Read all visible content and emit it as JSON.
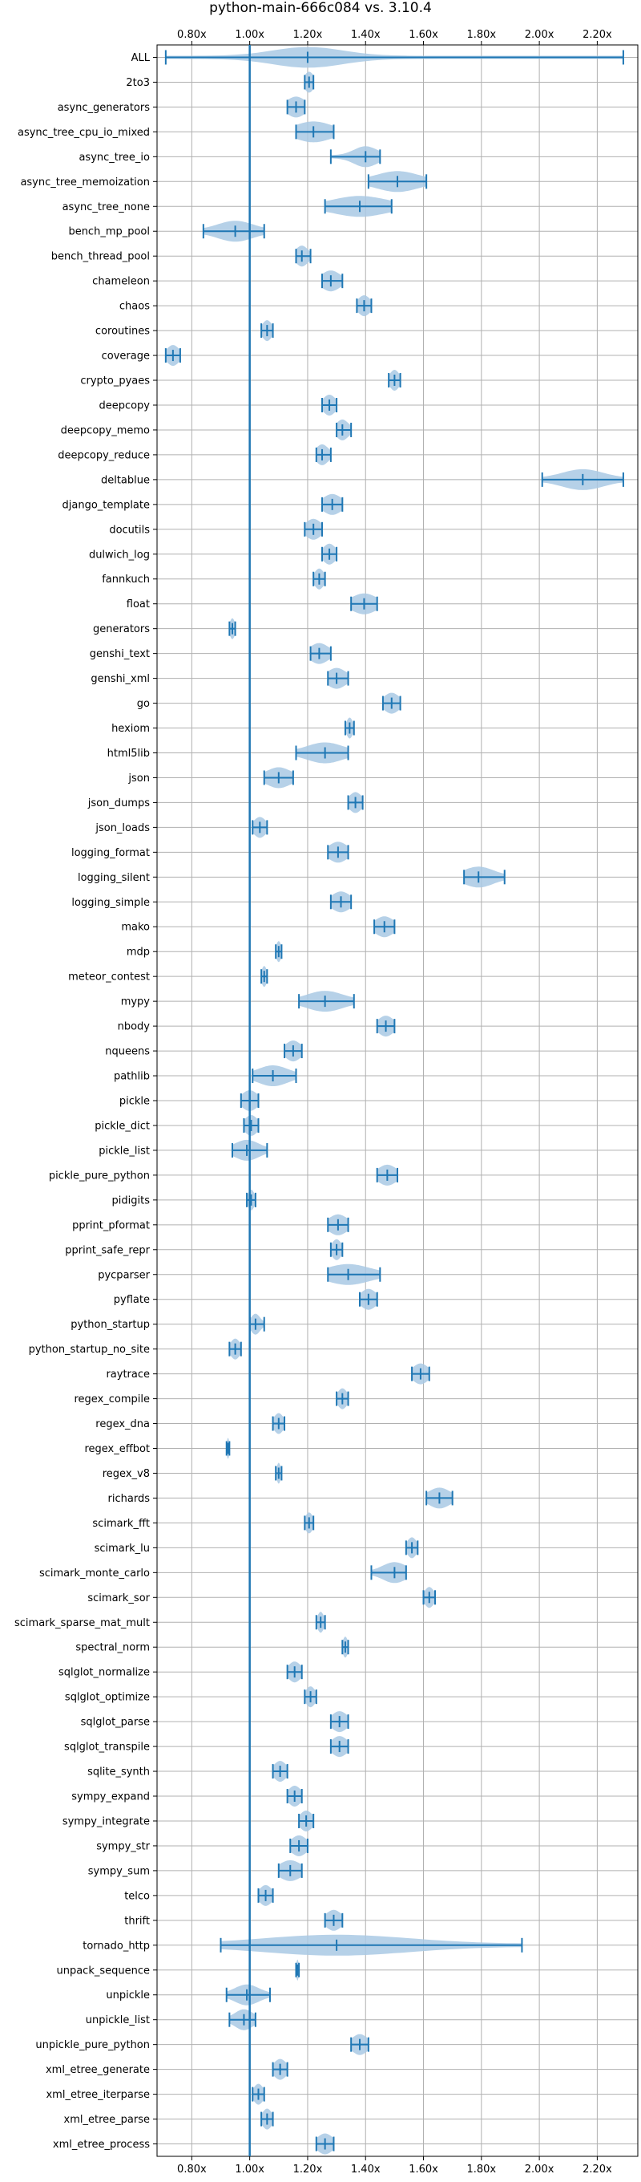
{
  "chart_data": {
    "type": "violin",
    "title": "python-main-666c084 vs. 3.10.4",
    "orientation": "horizontal",
    "xlim": [
      0.68,
      2.34
    ],
    "xticks": [
      0.8,
      1.0,
      1.2,
      1.4,
      1.6,
      1.8,
      2.0,
      2.2
    ],
    "xtick_labels": [
      "0.80x",
      "1.00x",
      "1.20x",
      "1.40x",
      "1.60x",
      "1.80x",
      "2.00x",
      "2.20x"
    ],
    "reference_line": 1.0,
    "grid": true,
    "colors": {
      "violin": "#a9c9e4",
      "line": "#1f77b4",
      "grid": "#b0b0b0"
    },
    "benchmarks": [
      {
        "name": "ALL",
        "min": 0.71,
        "max": 2.29,
        "median": 1.2,
        "spread": 0.12
      },
      {
        "name": "2to3",
        "min": 1.19,
        "max": 1.22,
        "median": 1.205,
        "spread": 0.015
      },
      {
        "name": "async_generators",
        "min": 1.13,
        "max": 1.19,
        "median": 1.16,
        "spread": 0.03
      },
      {
        "name": "async_tree_cpu_io_mixed",
        "min": 1.16,
        "max": 1.29,
        "median": 1.22,
        "spread": 0.06
      },
      {
        "name": "async_tree_io",
        "min": 1.28,
        "max": 1.45,
        "median": 1.4,
        "spread": 0.04
      },
      {
        "name": "async_tree_memoization",
        "min": 1.41,
        "max": 1.61,
        "median": 1.51,
        "spread": 0.07
      },
      {
        "name": "async_tree_none",
        "min": 1.26,
        "max": 1.49,
        "median": 1.38,
        "spread": 0.09
      },
      {
        "name": "bench_mp_pool",
        "min": 0.84,
        "max": 1.05,
        "median": 0.95,
        "spread": 0.06
      },
      {
        "name": "bench_thread_pool",
        "min": 1.16,
        "max": 1.21,
        "median": 1.18,
        "spread": 0.02
      },
      {
        "name": "chameleon",
        "min": 1.25,
        "max": 1.32,
        "median": 1.28,
        "spread": 0.03
      },
      {
        "name": "chaos",
        "min": 1.37,
        "max": 1.42,
        "median": 1.395,
        "spread": 0.02
      },
      {
        "name": "coroutines",
        "min": 1.04,
        "max": 1.08,
        "median": 1.06,
        "spread": 0.015
      },
      {
        "name": "coverage",
        "min": 0.71,
        "max": 0.76,
        "median": 0.735,
        "spread": 0.02
      },
      {
        "name": "crypto_pyaes",
        "min": 1.48,
        "max": 1.52,
        "median": 1.5,
        "spread": 0.015
      },
      {
        "name": "deepcopy",
        "min": 1.25,
        "max": 1.3,
        "median": 1.275,
        "spread": 0.02
      },
      {
        "name": "deepcopy_memo",
        "min": 1.3,
        "max": 1.35,
        "median": 1.32,
        "spread": 0.02
      },
      {
        "name": "deepcopy_reduce",
        "min": 1.23,
        "max": 1.28,
        "median": 1.25,
        "spread": 0.02
      },
      {
        "name": "deltablue",
        "min": 2.01,
        "max": 2.29,
        "median": 2.15,
        "spread": 0.07
      },
      {
        "name": "django_template",
        "min": 1.25,
        "max": 1.32,
        "median": 1.285,
        "spread": 0.03
      },
      {
        "name": "docutils",
        "min": 1.19,
        "max": 1.25,
        "median": 1.22,
        "spread": 0.025
      },
      {
        "name": "dulwich_log",
        "min": 1.25,
        "max": 1.3,
        "median": 1.275,
        "spread": 0.02
      },
      {
        "name": "fannkuch",
        "min": 1.22,
        "max": 1.26,
        "median": 1.24,
        "spread": 0.015
      },
      {
        "name": "float",
        "min": 1.35,
        "max": 1.44,
        "median": 1.395,
        "spread": 0.04
      },
      {
        "name": "generators",
        "min": 0.93,
        "max": 0.95,
        "median": 0.94,
        "spread": 0.008
      },
      {
        "name": "genshi_text",
        "min": 1.21,
        "max": 1.28,
        "median": 1.24,
        "spread": 0.03
      },
      {
        "name": "genshi_xml",
        "min": 1.27,
        "max": 1.34,
        "median": 1.3,
        "spread": 0.03
      },
      {
        "name": "go",
        "min": 1.46,
        "max": 1.52,
        "median": 1.49,
        "spread": 0.025
      },
      {
        "name": "hexiom",
        "min": 1.33,
        "max": 1.36,
        "median": 1.345,
        "spread": 0.01
      },
      {
        "name": "html5lib",
        "min": 1.16,
        "max": 1.34,
        "median": 1.26,
        "spread": 0.06
      },
      {
        "name": "json",
        "min": 1.05,
        "max": 1.15,
        "median": 1.1,
        "spread": 0.04
      },
      {
        "name": "json_dumps",
        "min": 1.34,
        "max": 1.39,
        "median": 1.365,
        "spread": 0.02
      },
      {
        "name": "json_loads",
        "min": 1.01,
        "max": 1.06,
        "median": 1.035,
        "spread": 0.02
      },
      {
        "name": "logging_format",
        "min": 1.27,
        "max": 1.34,
        "median": 1.305,
        "spread": 0.03
      },
      {
        "name": "logging_silent",
        "min": 1.74,
        "max": 1.88,
        "median": 1.79,
        "spread": 0.05
      },
      {
        "name": "logging_simple",
        "min": 1.28,
        "max": 1.35,
        "median": 1.315,
        "spread": 0.03
      },
      {
        "name": "mako",
        "min": 1.43,
        "max": 1.5,
        "median": 1.465,
        "spread": 0.03
      },
      {
        "name": "mdp",
        "min": 1.09,
        "max": 1.11,
        "median": 1.1,
        "spread": 0.008
      },
      {
        "name": "meteor_contest",
        "min": 1.04,
        "max": 1.06,
        "median": 1.05,
        "spread": 0.008
      },
      {
        "name": "mypy",
        "min": 1.17,
        "max": 1.36,
        "median": 1.26,
        "spread": 0.06
      },
      {
        "name": "nbody",
        "min": 1.44,
        "max": 1.5,
        "median": 1.47,
        "spread": 0.025
      },
      {
        "name": "nqueens",
        "min": 1.12,
        "max": 1.18,
        "median": 1.15,
        "spread": 0.025
      },
      {
        "name": "pathlib",
        "min": 1.01,
        "max": 1.16,
        "median": 1.08,
        "spread": 0.05
      },
      {
        "name": "pickle",
        "min": 0.97,
        "max": 1.03,
        "median": 1.0,
        "spread": 0.025
      },
      {
        "name": "pickle_dict",
        "min": 0.98,
        "max": 1.03,
        "median": 1.005,
        "spread": 0.02
      },
      {
        "name": "pickle_list",
        "min": 0.94,
        "max": 1.06,
        "median": 0.99,
        "spread": 0.04
      },
      {
        "name": "pickle_pure_python",
        "min": 1.44,
        "max": 1.51,
        "median": 1.475,
        "spread": 0.03
      },
      {
        "name": "pidigits",
        "min": 0.99,
        "max": 1.02,
        "median": 1.005,
        "spread": 0.01
      },
      {
        "name": "pprint_pformat",
        "min": 1.27,
        "max": 1.34,
        "median": 1.305,
        "spread": 0.03
      },
      {
        "name": "pprint_safe_repr",
        "min": 1.28,
        "max": 1.32,
        "median": 1.3,
        "spread": 0.015
      },
      {
        "name": "pycparser",
        "min": 1.27,
        "max": 1.45,
        "median": 1.34,
        "spread": 0.07
      },
      {
        "name": "pyflate",
        "min": 1.38,
        "max": 1.44,
        "median": 1.41,
        "spread": 0.025
      },
      {
        "name": "python_startup",
        "min": 1.0,
        "max": 1.05,
        "median": 1.02,
        "spread": 0.015
      },
      {
        "name": "python_startup_no_site",
        "min": 0.93,
        "max": 0.97,
        "median": 0.95,
        "spread": 0.015
      },
      {
        "name": "raytrace",
        "min": 1.56,
        "max": 1.62,
        "median": 1.59,
        "spread": 0.025
      },
      {
        "name": "regex_compile",
        "min": 1.3,
        "max": 1.34,
        "median": 1.32,
        "spread": 0.015
      },
      {
        "name": "regex_dna",
        "min": 1.08,
        "max": 1.12,
        "median": 1.1,
        "spread": 0.015
      },
      {
        "name": "regex_effbot",
        "min": 0.92,
        "max": 0.93,
        "median": 0.925,
        "spread": 0.004
      },
      {
        "name": "regex_v8",
        "min": 1.09,
        "max": 1.11,
        "median": 1.1,
        "spread": 0.006
      },
      {
        "name": "richards",
        "min": 1.61,
        "max": 1.7,
        "median": 1.655,
        "spread": 0.035
      },
      {
        "name": "scimark_fft",
        "min": 1.19,
        "max": 1.22,
        "median": 1.205,
        "spread": 0.012
      },
      {
        "name": "scimark_lu",
        "min": 1.54,
        "max": 1.58,
        "median": 1.56,
        "spread": 0.015
      },
      {
        "name": "scimark_monte_carlo",
        "min": 1.42,
        "max": 1.54,
        "median": 1.5,
        "spread": 0.04
      },
      {
        "name": "scimark_sor",
        "min": 1.6,
        "max": 1.64,
        "median": 1.62,
        "spread": 0.015
      },
      {
        "name": "scimark_sparse_mat_mult",
        "min": 1.23,
        "max": 1.26,
        "median": 1.245,
        "spread": 0.01
      },
      {
        "name": "spectral_norm",
        "min": 1.32,
        "max": 1.34,
        "median": 1.33,
        "spread": 0.008
      },
      {
        "name": "sqlglot_normalize",
        "min": 1.13,
        "max": 1.18,
        "median": 1.155,
        "spread": 0.02
      },
      {
        "name": "sqlglot_optimize",
        "min": 1.19,
        "max": 1.23,
        "median": 1.21,
        "spread": 0.015
      },
      {
        "name": "sqlglot_parse",
        "min": 1.28,
        "max": 1.34,
        "median": 1.31,
        "spread": 0.025
      },
      {
        "name": "sqlglot_transpile",
        "min": 1.28,
        "max": 1.34,
        "median": 1.31,
        "spread": 0.025
      },
      {
        "name": "sqlite_synth",
        "min": 1.08,
        "max": 1.13,
        "median": 1.105,
        "spread": 0.02
      },
      {
        "name": "sympy_expand",
        "min": 1.13,
        "max": 1.18,
        "median": 1.155,
        "spread": 0.02
      },
      {
        "name": "sympy_integrate",
        "min": 1.17,
        "max": 1.22,
        "median": 1.195,
        "spread": 0.02
      },
      {
        "name": "sympy_str",
        "min": 1.14,
        "max": 1.2,
        "median": 1.17,
        "spread": 0.025
      },
      {
        "name": "sympy_sum",
        "min": 1.1,
        "max": 1.18,
        "median": 1.14,
        "spread": 0.035
      },
      {
        "name": "telco",
        "min": 1.03,
        "max": 1.08,
        "median": 1.055,
        "spread": 0.02
      },
      {
        "name": "thrift",
        "min": 1.26,
        "max": 1.32,
        "median": 1.29,
        "spread": 0.025
      },
      {
        "name": "tornado_http",
        "min": 0.9,
        "max": 1.94,
        "median": 1.3,
        "spread": 0.25
      },
      {
        "name": "unpack_sequence",
        "min": 1.16,
        "max": 1.17,
        "median": 1.165,
        "spread": 0.004
      },
      {
        "name": "unpickle",
        "min": 0.92,
        "max": 1.07,
        "median": 0.99,
        "spread": 0.04
      },
      {
        "name": "unpickle_list",
        "min": 0.93,
        "max": 1.02,
        "median": 0.98,
        "spread": 0.03
      },
      {
        "name": "unpickle_pure_python",
        "min": 1.35,
        "max": 1.41,
        "median": 1.38,
        "spread": 0.025
      },
      {
        "name": "xml_etree_generate",
        "min": 1.08,
        "max": 1.13,
        "median": 1.105,
        "spread": 0.02
      },
      {
        "name": "xml_etree_iterparse",
        "min": 1.01,
        "max": 1.05,
        "median": 1.03,
        "spread": 0.015
      },
      {
        "name": "xml_etree_parse",
        "min": 1.04,
        "max": 1.08,
        "median": 1.06,
        "spread": 0.015
      },
      {
        "name": "xml_etree_process",
        "min": 1.23,
        "max": 1.29,
        "median": 1.26,
        "spread": 0.025
      }
    ]
  }
}
